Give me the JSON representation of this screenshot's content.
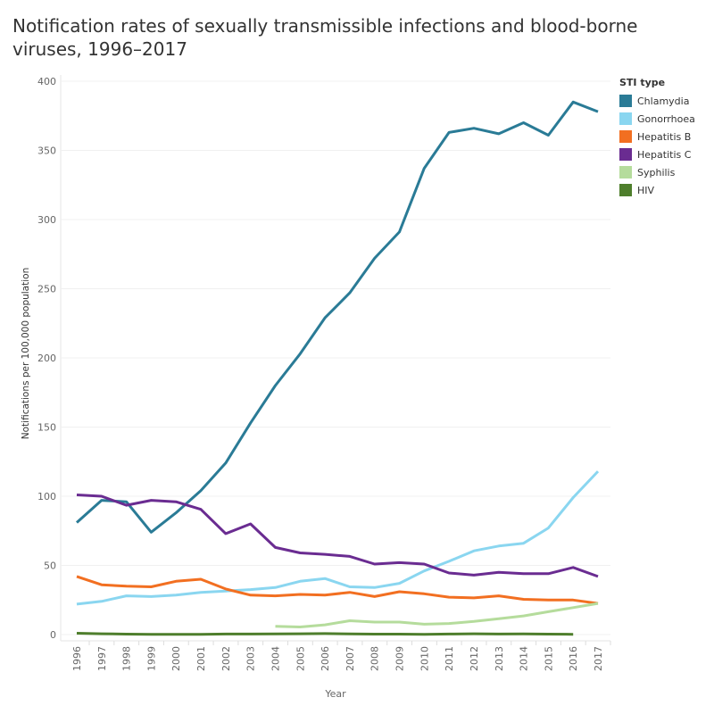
{
  "chart_data": {
    "type": "line",
    "title": "Notification rates of sexually transmissible infections and blood-borne viruses, 1996–2017",
    "xlabel": "Year",
    "ylabel": "Notifications per 100,000 population",
    "ylim": [
      0,
      400
    ],
    "yticks": [
      0,
      50,
      100,
      150,
      200,
      250,
      300,
      350,
      400
    ],
    "grid": true,
    "legend_position": "right",
    "legend_title": "STI type",
    "x": [
      "1996",
      "1997",
      "1998",
      "1999",
      "2000",
      "2001",
      "2002",
      "2003",
      "2004",
      "2005",
      "2006",
      "2007",
      "2008",
      "2009",
      "2010",
      "2011",
      "2012",
      "2013",
      "2014",
      "2015",
      "2016",
      "2017"
    ],
    "series": [
      {
        "name": "Chlamydia",
        "color": "#2a7b96",
        "values": [
          81,
          97,
          96,
          74,
          88,
          104,
          124,
          153,
          180,
          203,
          229,
          247,
          272,
          291,
          337,
          363,
          366,
          362,
          370,
          361,
          385,
          378
        ]
      },
      {
        "name": "Gonorrhoea",
        "color": "#8ad6f0",
        "values": [
          22,
          24,
          28,
          27.5,
          28.5,
          30.5,
          31.5,
          32.5,
          34,
          38.5,
          40.5,
          34.5,
          34,
          37,
          46,
          53,
          60.5,
          64,
          66,
          77,
          99,
          118
        ]
      },
      {
        "name": "Hepatitis B",
        "color": "#f26f21",
        "values": [
          42,
          36,
          35,
          34.5,
          38.5,
          40,
          33,
          28.5,
          28,
          29,
          28.5,
          30.5,
          27.5,
          31,
          29.5,
          27,
          26.5,
          28,
          25.5,
          25,
          25,
          22.5
        ]
      },
      {
        "name": "Hepatitis C",
        "color": "#6a2c91",
        "values": [
          101,
          100,
          93.5,
          97,
          96,
          90.5,
          73,
          80,
          63,
          59,
          58,
          56.5,
          51,
          52,
          51,
          44.5,
          43,
          45,
          44,
          44,
          48.5,
          42
        ]
      },
      {
        "name": "Syphilis",
        "color": "#b5dc9c",
        "values": [
          null,
          null,
          null,
          null,
          null,
          null,
          null,
          null,
          6,
          5.5,
          7,
          10,
          9,
          9,
          7.5,
          8,
          9.5,
          11.5,
          13.5,
          16.5,
          19.5,
          22.5
        ]
      },
      {
        "name": "HIV",
        "color": "#4e7e2c",
        "values": [
          1,
          0.6,
          0.3,
          0.1,
          0.2,
          0.2,
          0.4,
          0.4,
          0.5,
          0.6,
          0.7,
          0.5,
          0.3,
          0.3,
          0.2,
          0.4,
          0.6,
          0.4,
          0.5,
          0.3,
          0.2,
          null
        ]
      }
    ]
  }
}
